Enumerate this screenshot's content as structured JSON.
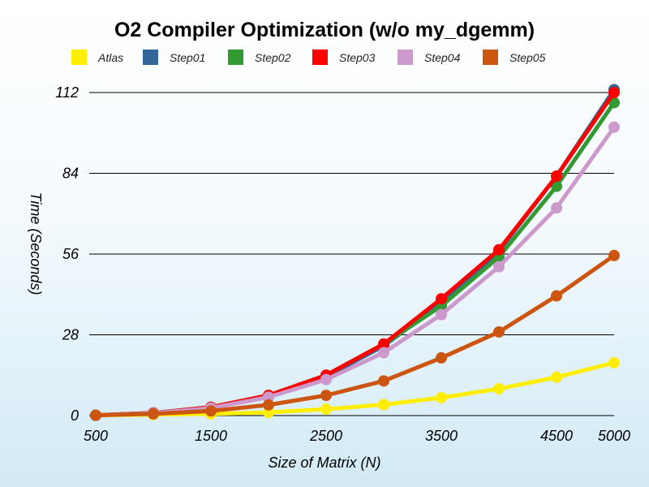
{
  "chart_data": {
    "type": "line",
    "title": "O2 Compiler Optimization (w/o my_dgemm)",
    "xlabel": "Size of Matrix (N)",
    "ylabel": "Time (Seconds)",
    "x": [
      500,
      1000,
      1500,
      2000,
      2500,
      3000,
      3500,
      4000,
      4500,
      5000
    ],
    "x_tick_labels": [
      "500",
      "1500",
      "2500",
      "3500",
      "4500",
      "5000"
    ],
    "x_tick_values": [
      500,
      1500,
      2500,
      3500,
      4500,
      5000
    ],
    "y_ticks": [
      0,
      28,
      56,
      84,
      112
    ],
    "xlim": [
      500,
      5000
    ],
    "ylim": [
      0,
      112
    ],
    "grid": "horizontal",
    "legend_position": "top",
    "series": [
      {
        "name": "Atlas",
        "color": "#ffee00",
        "values": [
          0.1,
          0.3,
          0.6,
          1.1,
          2.2,
          3.8,
          6.2,
          9.3,
          13.3,
          18.3
        ]
      },
      {
        "name": "Step01",
        "color": "#336699",
        "values": [
          0.1,
          0.9,
          2.8,
          6.8,
          13.5,
          24.2,
          38.8,
          57.0,
          83.0,
          113.0
        ]
      },
      {
        "name": "Step02",
        "color": "#339933",
        "values": [
          0.1,
          0.9,
          2.9,
          7.0,
          14.0,
          24.8,
          38.0,
          55.0,
          79.5,
          108.5
        ]
      },
      {
        "name": "Step03",
        "color": "#ff0000",
        "values": [
          0.1,
          0.9,
          2.9,
          7.0,
          14.0,
          24.8,
          40.5,
          57.5,
          83.0,
          112.0
        ]
      },
      {
        "name": "Step04",
        "color": "#cc99cc",
        "values": [
          0.1,
          0.8,
          2.6,
          6.4,
          12.5,
          21.8,
          35.0,
          51.6,
          72.0,
          100.0
        ]
      },
      {
        "name": "Step05",
        "color": "#cc5511",
        "values": [
          0.1,
          0.6,
          1.6,
          3.7,
          7.0,
          12.0,
          20.0,
          29.0,
          41.5,
          55.5
        ]
      }
    ]
  }
}
